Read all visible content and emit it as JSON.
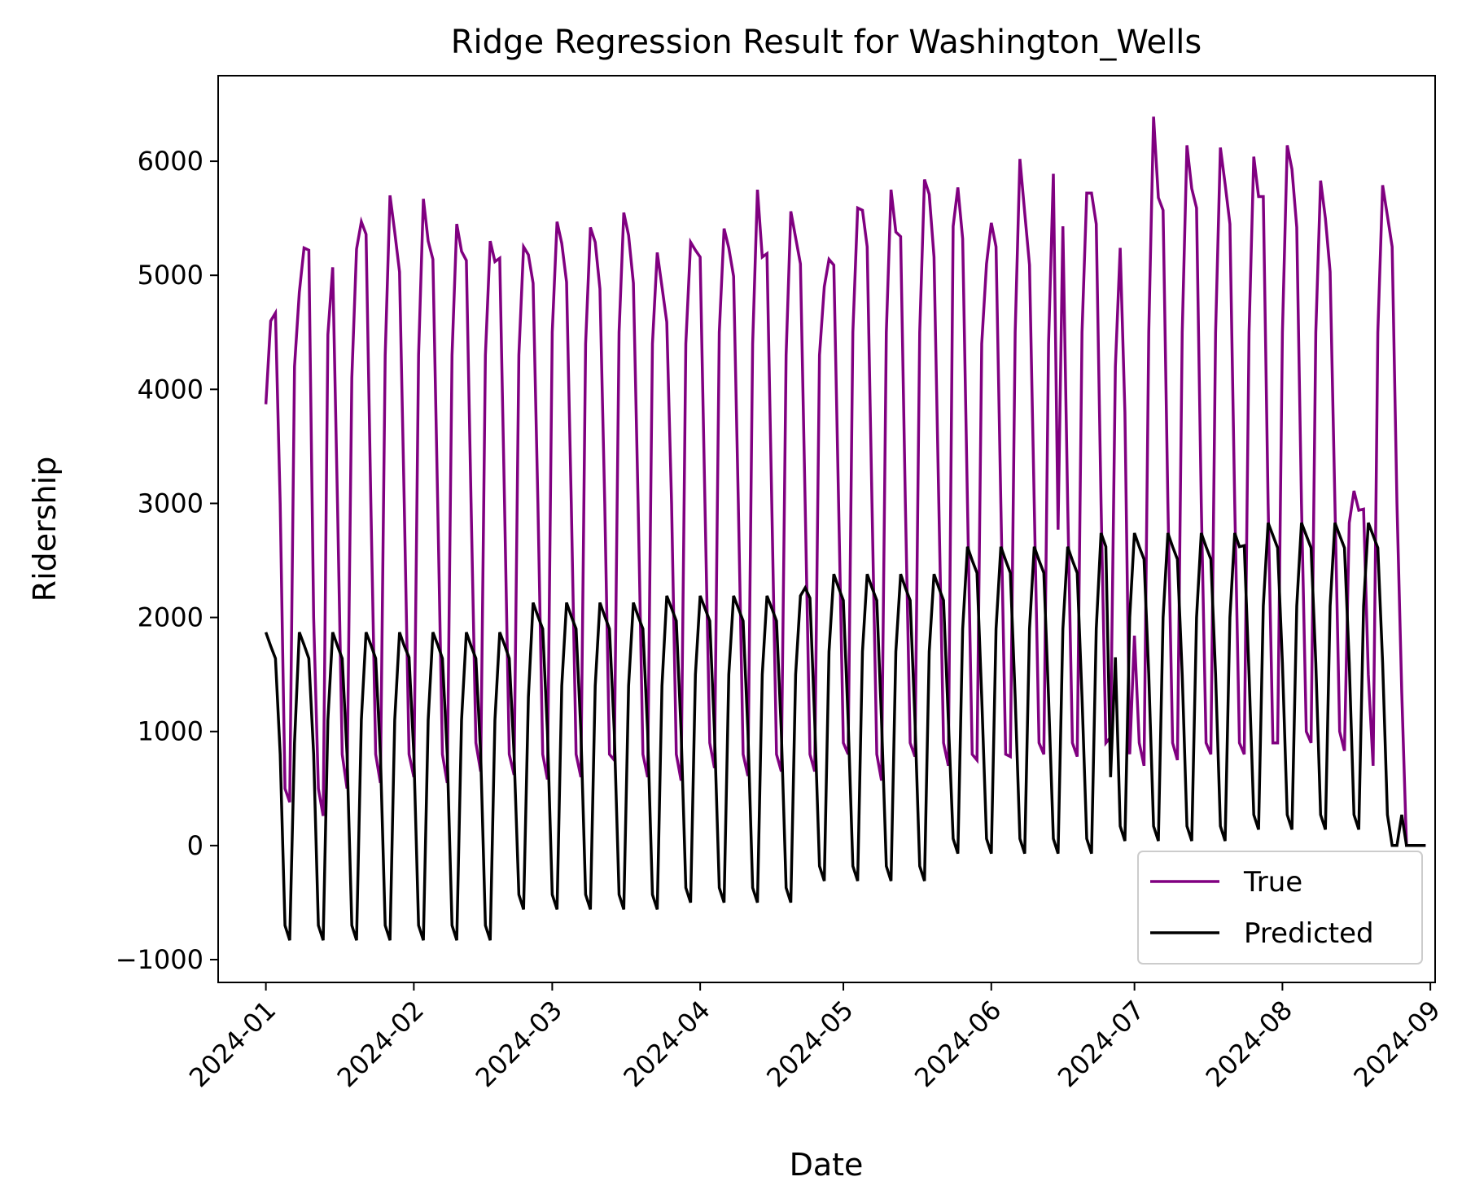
{
  "chart_data": {
    "type": "line",
    "title": "Ridge Regression Result for Washington_Wells",
    "xlabel": "Date",
    "ylabel": "Ridership",
    "x_range": [
      "2023-12-22",
      "2024-09-02"
    ],
    "xticks": [
      "2024-01",
      "2024-02",
      "2024-03",
      "2024-04",
      "2024-05",
      "2024-06",
      "2024-07",
      "2024-08",
      "2024-09"
    ],
    "ylim": [
      -1200,
      6750
    ],
    "yticks": [
      -1000,
      0,
      1000,
      2000,
      3000,
      4000,
      5000,
      6000
    ],
    "ytick_labels": [
      "−1000",
      "0",
      "1000",
      "2000",
      "3000",
      "4000",
      "5000",
      "6000"
    ],
    "grid": false,
    "legend": "lower right",
    "start_date": "2024-01-01",
    "end_date": "2024-08-31",
    "series": [
      {
        "name": "True",
        "color": "#800080",
        "weekly_levels": [
          [
            3870,
            4600,
            4670,
            3000,
            500,
            380,
            4200
          ],
          [
            4850,
            5240,
            5220,
            2000,
            500,
            260,
            4480
          ],
          [
            5070,
            3000,
            800,
            500,
            4100,
            5230,
            5470
          ],
          [
            5360,
            3000,
            800,
            550,
            4300,
            5700,
            5380
          ],
          [
            5030,
            3000,
            800,
            600,
            4300,
            5670,
            5300
          ],
          [
            5140,
            3000,
            800,
            550,
            4300,
            5450,
            5210
          ],
          [
            5130,
            3000,
            900,
            650,
            4300,
            5300,
            5120
          ],
          [
            5150,
            3000,
            800,
            620,
            4300,
            5250,
            5180
          ],
          [
            4930,
            3000,
            800,
            580,
            4500,
            5470,
            5280
          ],
          [
            4940,
            3000,
            800,
            600,
            4400,
            5420,
            5290
          ],
          [
            4880,
            3000,
            800,
            750,
            4500,
            5550,
            5350
          ],
          [
            4930,
            3000,
            800,
            600,
            4400,
            5200,
            4900
          ],
          [
            4590,
            3000,
            800,
            570,
            4400,
            5290,
            5220
          ],
          [
            5160,
            3000,
            900,
            680,
            4500,
            5410,
            5240
          ],
          [
            4990,
            3000,
            800,
            610,
            4400,
            5750,
            5160
          ],
          [
            5190,
            3000,
            800,
            650,
            4300,
            5560,
            5330
          ],
          [
            5100,
            3000,
            800,
            650,
            4300,
            4900,
            5140
          ],
          [
            5090,
            3000,
            900,
            800,
            4500,
            5590,
            5570
          ],
          [
            5250,
            3000,
            800,
            570,
            4500,
            5750,
            5380
          ],
          [
            5340,
            3000,
            900,
            780,
            4500,
            5840,
            5710
          ],
          [
            5160,
            3000,
            900,
            700,
            5430,
            5770,
            5320
          ],
          [
            3000,
            800,
            750,
            4400,
            5100,
            5460,
            5250
          ],
          [
            3000,
            800,
            780,
            4500,
            6020,
            5550,
            5090
          ],
          [
            3000,
            900,
            800,
            4400,
            5890,
            2770,
            5430
          ],
          [
            3000,
            900,
            780,
            4500,
            5720,
            5720,
            5450
          ],
          [
            3000,
            900,
            950,
            4200,
            5240,
            3800,
            800
          ],
          [
            1840,
            900,
            700,
            4500,
            6390,
            5680,
            5570
          ],
          [
            3000,
            900,
            750,
            4500,
            6140,
            5760,
            5590
          ],
          [
            3000,
            900,
            800,
            4500,
            6120,
            5800,
            5450
          ],
          [
            3000,
            900,
            800,
            4500,
            6040,
            5690,
            5690
          ],
          [
            3000,
            900,
            900,
            4500,
            6140,
            5930,
            5420
          ],
          [
            3000,
            1000,
            900,
            4500,
            5830,
            5500,
            5030
          ],
          [
            3000,
            1000,
            830,
            2830,
            3110,
            2940,
            2950
          ],
          [
            1500,
            700,
            4500,
            5790,
            5520,
            5250,
            3000
          ],
          [
            1340,
            0,
            0,
            0,
            0,
            0,
            0
          ]
        ]
      },
      {
        "name": "Predicted",
        "color": "#000000",
        "weekly_levels": [
          [
            1870,
            1750,
            1640,
            800,
            -700,
            -830,
            900
          ],
          [
            1870,
            1760,
            1640,
            800,
            -700,
            -830,
            1100
          ],
          [
            1870,
            1750,
            1640,
            800,
            -700,
            -830,
            1100
          ],
          [
            1870,
            1760,
            1640,
            800,
            -700,
            -830,
            1100
          ],
          [
            1870,
            1750,
            1650,
            800,
            -700,
            -830,
            1100
          ],
          [
            1870,
            1760,
            1640,
            800,
            -700,
            -830,
            1100
          ],
          [
            1870,
            1750,
            1640,
            800,
            -700,
            -830,
            1100
          ],
          [
            1870,
            1760,
            1640,
            800,
            -430,
            -560,
            1300
          ],
          [
            2130,
            2010,
            1900,
            1000,
            -430,
            -560,
            1400
          ],
          [
            2130,
            2010,
            1900,
            1000,
            -430,
            -560,
            1400
          ],
          [
            2130,
            2010,
            1900,
            1000,
            -430,
            -560,
            1400
          ],
          [
            2130,
            2010,
            1900,
            1000,
            -430,
            -560,
            1400
          ],
          [
            2190,
            2080,
            1970,
            1000,
            -370,
            -500,
            1500
          ],
          [
            2190,
            2080,
            1970,
            1000,
            -370,
            -500,
            1500
          ],
          [
            2190,
            2080,
            1970,
            1000,
            -370,
            -500,
            1500
          ],
          [
            2190,
            2080,
            1970,
            1000,
            -370,
            -500,
            1500
          ],
          [
            2190,
            2260,
            2170,
            1100,
            -180,
            -310,
            1700
          ],
          [
            2380,
            2260,
            2150,
            1100,
            -180,
            -310,
            1700
          ],
          [
            2380,
            2260,
            2150,
            1100,
            -180,
            -310,
            1700
          ],
          [
            2380,
            2260,
            2150,
            1100,
            -180,
            -310,
            1700
          ],
          [
            2380,
            2260,
            2150,
            1100,
            60,
            -70,
            1900
          ],
          [
            2620,
            2500,
            2390,
            1300,
            60,
            -70,
            1900
          ],
          [
            2620,
            2500,
            2390,
            1300,
            60,
            -70,
            1900
          ],
          [
            2620,
            2500,
            2390,
            1300,
            60,
            -70,
            1900
          ],
          [
            2620,
            2500,
            2390,
            1300,
            60,
            -70,
            1900
          ],
          [
            2740,
            2620,
            600,
            1650,
            170,
            40,
            2000
          ],
          [
            2740,
            2620,
            2510,
            1500,
            170,
            40,
            2000
          ],
          [
            2740,
            2620,
            2510,
            1500,
            170,
            40,
            2000
          ],
          [
            2740,
            2620,
            2510,
            1500,
            170,
            40,
            2000
          ],
          [
            2740,
            2620,
            2630,
            1500,
            270,
            140,
            2100
          ],
          [
            2830,
            2720,
            2610,
            1600,
            270,
            140,
            2100
          ],
          [
            2830,
            2720,
            2610,
            1600,
            270,
            140,
            2100
          ],
          [
            2830,
            2720,
            2610,
            1600,
            270,
            140,
            2100
          ],
          [
            2830,
            2720,
            2610,
            1600,
            270,
            0,
            0
          ],
          [
            270,
            0,
            0,
            0,
            0,
            0,
            0
          ]
        ]
      }
    ]
  }
}
